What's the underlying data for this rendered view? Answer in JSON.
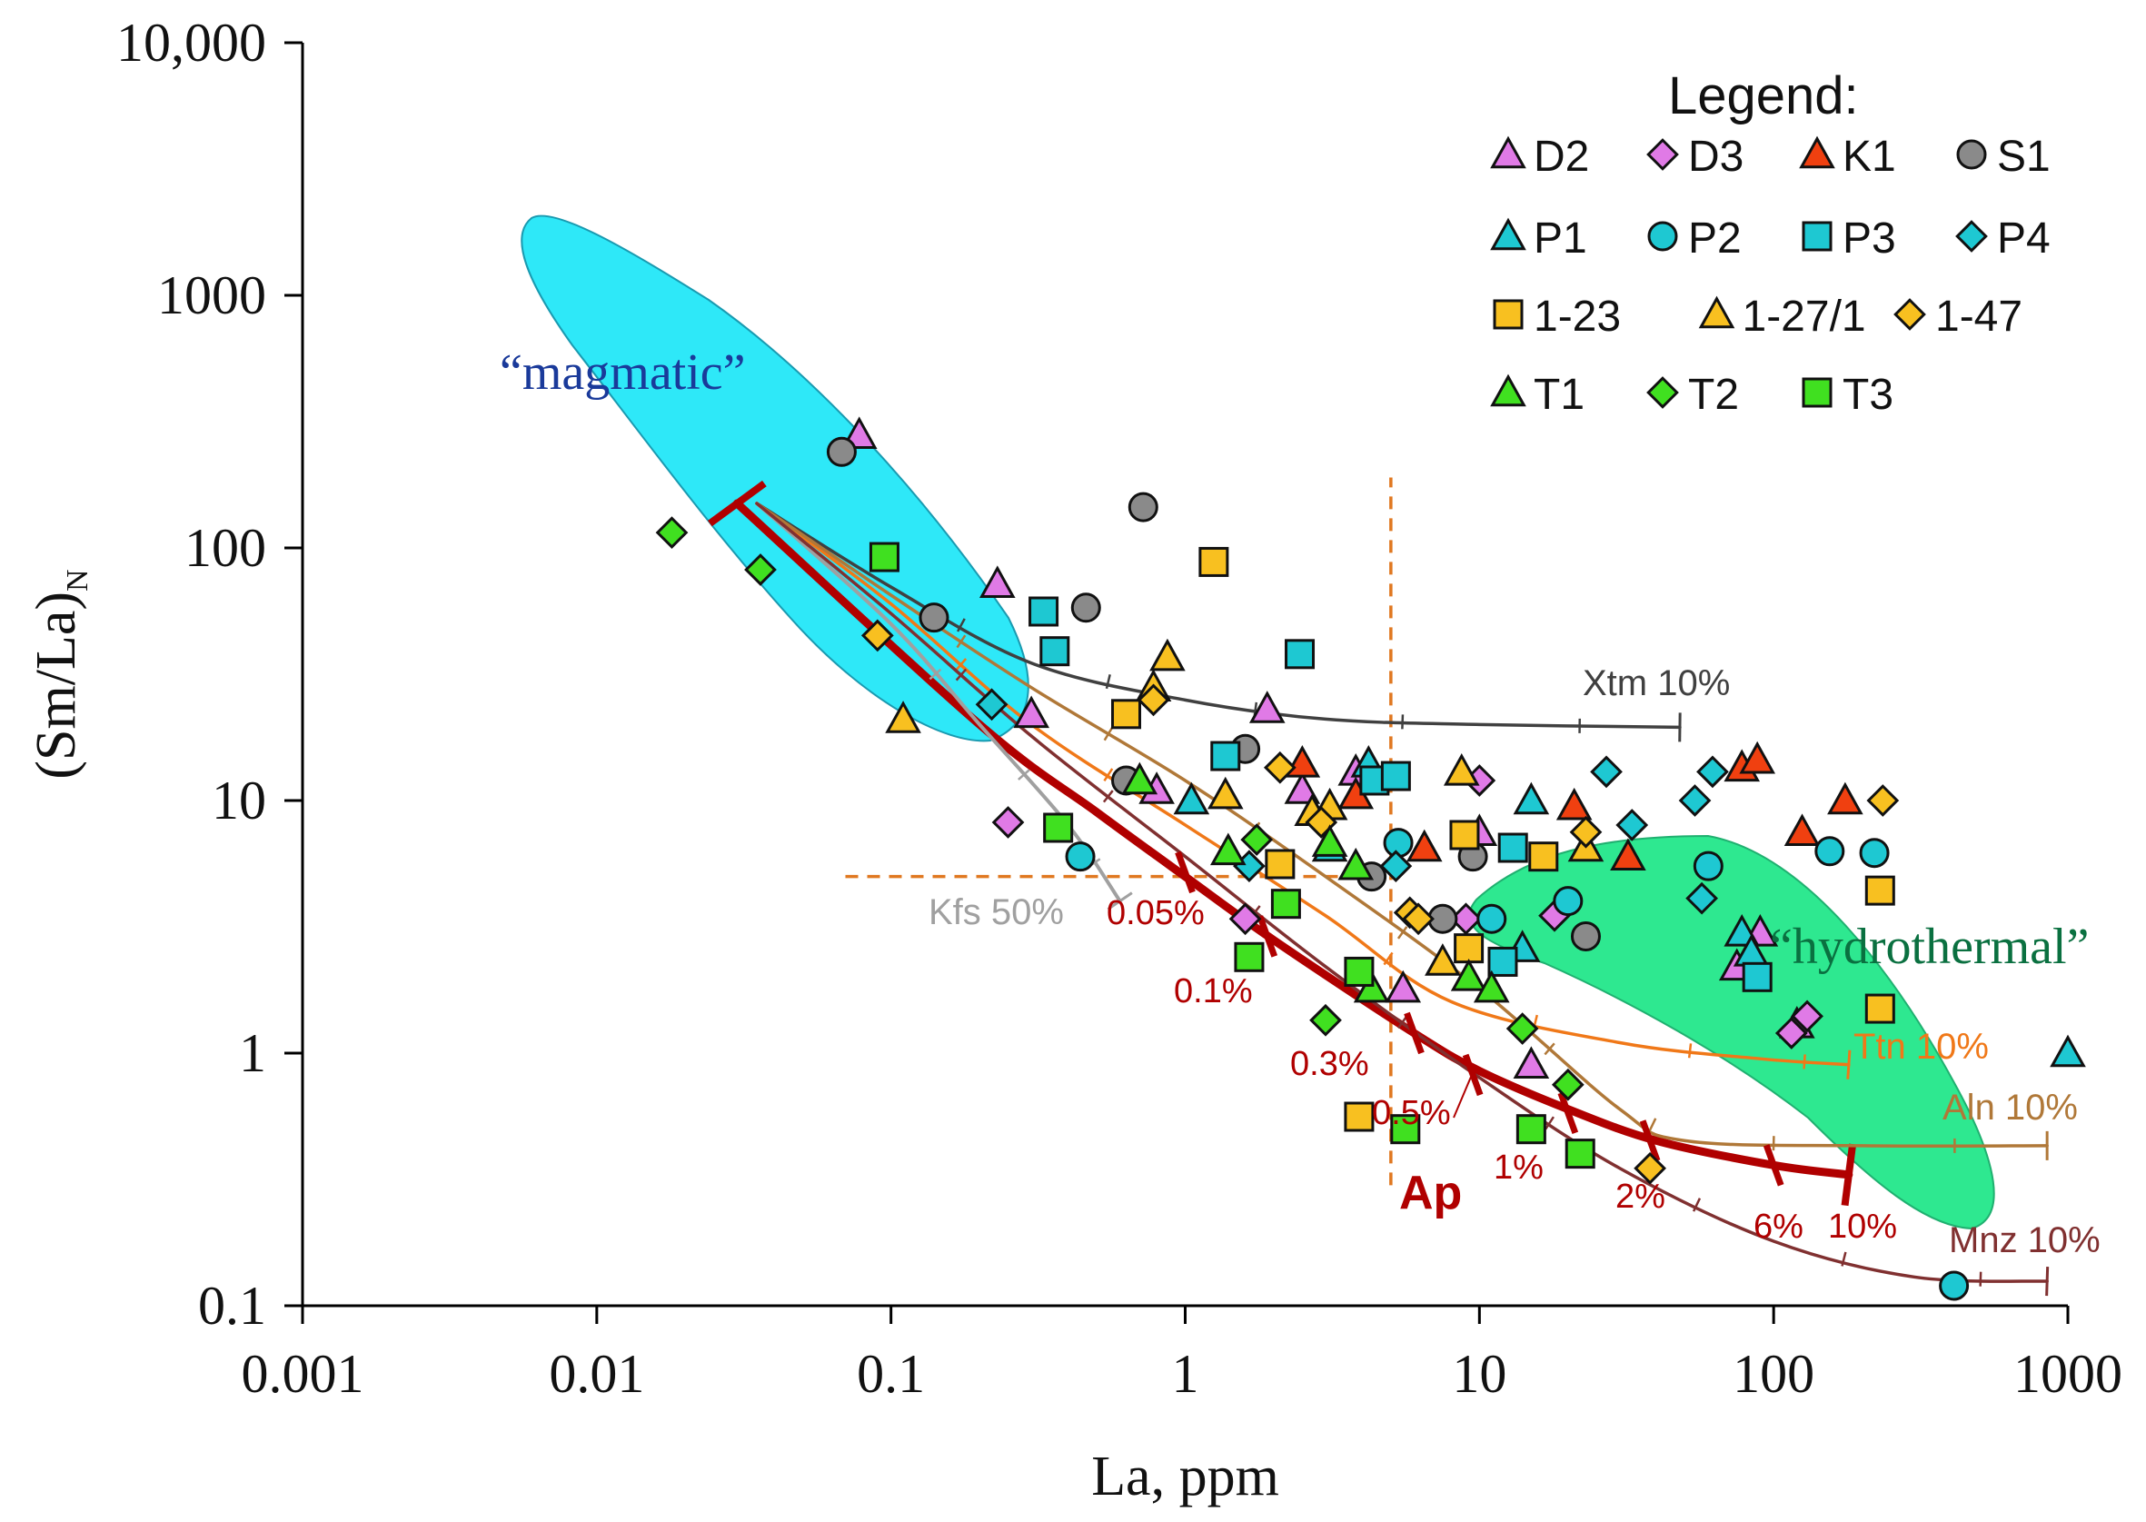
{
  "chart_data": {
    "type": "scatter",
    "title": "",
    "xlabel": "La, ppm",
    "ylabel": "(Sm/La)",
    "ylabel_sub": "N",
    "xscale": "log",
    "yscale": "log",
    "xlim": [
      0.001,
      1000
    ],
    "ylim": [
      0.1,
      10000
    ],
    "x_ticks": [
      0.001,
      0.01,
      0.1,
      1,
      10,
      100,
      1000
    ],
    "x_tick_labels": [
      "0.001",
      "0.01",
      "0.1",
      "1",
      "10",
      "100",
      "1000"
    ],
    "y_ticks": [
      0.1,
      1,
      10,
      100,
      1000,
      10000
    ],
    "y_tick_labels": [
      "0.1",
      "1",
      "10",
      "100",
      "1000",
      "10,000"
    ],
    "grid": false,
    "legend": {
      "title": "Legend:",
      "placement": "top-right",
      "entries": [
        {
          "name": "D2",
          "marker": "triangle",
          "color": "#e07ae6"
        },
        {
          "name": "D3",
          "marker": "diamond",
          "color": "#e07ae6"
        },
        {
          "name": "K1",
          "marker": "triangle",
          "color": "#f04010"
        },
        {
          "name": "S1",
          "marker": "circle",
          "color": "#8a8a8a"
        },
        {
          "name": "P1",
          "marker": "triangle",
          "color": "#1ec8d2"
        },
        {
          "name": "P2",
          "marker": "circle",
          "color": "#1ec8d2"
        },
        {
          "name": "P3",
          "marker": "square",
          "color": "#1ec8d2"
        },
        {
          "name": "P4",
          "marker": "diamond",
          "color": "#1ec8d2"
        },
        {
          "name": "1-23",
          "marker": "square",
          "color": "#f8c020"
        },
        {
          "name": "1-27/1",
          "marker": "triangle",
          "color": "#f8c020"
        },
        {
          "name": "1-47",
          "marker": "diamond",
          "color": "#f8c020"
        },
        {
          "name": "T1",
          "marker": "triangle",
          "color": "#40e020"
        },
        {
          "name": "T2",
          "marker": "diamond",
          "color": "#40e020"
        },
        {
          "name": "T3",
          "marker": "square",
          "color": "#40e020"
        }
      ]
    },
    "series": [
      {
        "name": "D2",
        "points": [
          [
            0.078,
            280
          ],
          [
            0.23,
            72
          ],
          [
            0.3,
            22
          ],
          [
            0.8,
            11
          ],
          [
            1.9,
            23
          ],
          [
            2.5,
            11
          ],
          [
            3.8,
            13
          ],
          [
            5.5,
            1.8
          ],
          [
            10,
            7.5
          ],
          [
            15,
            0.9
          ],
          [
            75,
            2.2
          ],
          [
            90,
            3
          ],
          [
            120,
            1.3
          ]
        ]
      },
      {
        "name": "D3",
        "points": [
          [
            0.25,
            8.2
          ],
          [
            1.6,
            3.4
          ],
          [
            10,
            12
          ],
          [
            9,
            3.4
          ],
          [
            18,
            3.5
          ],
          [
            130,
            1.4
          ],
          [
            115,
            1.2
          ]
        ]
      },
      {
        "name": "K1",
        "points": [
          [
            2.5,
            14
          ],
          [
            3.8,
            10.5
          ],
          [
            6.5,
            6.5
          ],
          [
            21,
            9.5
          ],
          [
            32,
            6
          ],
          [
            78,
            13.5
          ],
          [
            88,
            14.5
          ],
          [
            125,
            7.5
          ],
          [
            175,
            10
          ]
        ]
      },
      {
        "name": "S1",
        "points": [
          [
            0.068,
            240
          ],
          [
            0.14,
            53
          ],
          [
            0.46,
            58
          ],
          [
            0.72,
            145
          ],
          [
            0.63,
            12
          ],
          [
            1.6,
            16
          ],
          [
            4.3,
            5
          ],
          [
            7.5,
            3.4
          ],
          [
            9.5,
            6
          ],
          [
            23,
            2.9
          ]
        ]
      },
      {
        "name": "P1",
        "points": [
          [
            1.05,
            10
          ],
          [
            3.1,
            6.5
          ],
          [
            4.2,
            14
          ],
          [
            15,
            10
          ],
          [
            14,
            2.6
          ],
          [
            78,
            3
          ],
          [
            84,
            2.5
          ],
          [
            1000,
            1
          ]
        ]
      },
      {
        "name": "P2",
        "points": [
          [
            0.44,
            6
          ],
          [
            5.3,
            6.8
          ],
          [
            11,
            3.4
          ],
          [
            20,
            4
          ],
          [
            60,
            5.5
          ],
          [
            155,
            6.3
          ],
          [
            220,
            6.2
          ],
          [
            410,
            0.12
          ]
        ]
      },
      {
        "name": "P3",
        "points": [
          [
            0.33,
            56
          ],
          [
            0.36,
            39
          ],
          [
            1.37,
            15
          ],
          [
            2.45,
            38
          ],
          [
            4.4,
            12
          ],
          [
            5.2,
            12.5
          ],
          [
            13,
            6.5
          ],
          [
            12,
            2.3
          ],
          [
            88,
            2
          ]
        ]
      },
      {
        "name": "P4",
        "points": [
          [
            0.22,
            24
          ],
          [
            1.65,
            5.5
          ],
          [
            5.2,
            5.5
          ],
          [
            27,
            13
          ],
          [
            33,
            8
          ],
          [
            57,
            4.1
          ],
          [
            54,
            10
          ],
          [
            62,
            13
          ]
        ]
      },
      {
        "name": "1-23",
        "points": [
          [
            0.63,
            22
          ],
          [
            1.25,
            88
          ],
          [
            2.1,
            5.6
          ],
          [
            8.9,
            7.3
          ],
          [
            9.2,
            2.6
          ],
          [
            16.5,
            6
          ],
          [
            3.9,
            0.56
          ],
          [
            230,
            4.4
          ],
          [
            230,
            1.5
          ]
        ]
      },
      {
        "name": "1-27/1",
        "points": [
          [
            0.11,
            21
          ],
          [
            0.78,
            28
          ],
          [
            0.87,
            37
          ],
          [
            1.37,
            10.5
          ],
          [
            2.7,
            9
          ],
          [
            3.1,
            9.5
          ],
          [
            7.5,
            2.3
          ],
          [
            8.7,
            13
          ],
          [
            23,
            6.5
          ]
        ]
      },
      {
        "name": "1-47",
        "points": [
          [
            0.09,
            45
          ],
          [
            0.78,
            25
          ],
          [
            2.1,
            13.5
          ],
          [
            2.9,
            8.2
          ],
          [
            5.8,
            3.6
          ],
          [
            6.2,
            3.4
          ],
          [
            23,
            7.5
          ],
          [
            38,
            0.35
          ],
          [
            235,
            10
          ]
        ]
      },
      {
        "name": "T1",
        "points": [
          [
            0.7,
            12
          ],
          [
            1.4,
            6.3
          ],
          [
            3.1,
            6.8
          ],
          [
            3.8,
            5.5
          ],
          [
            4.3,
            1.8
          ],
          [
            9.2,
            2
          ],
          [
            11,
            1.8
          ]
        ]
      },
      {
        "name": "T2",
        "points": [
          [
            0.018,
            115
          ],
          [
            0.036,
            82
          ],
          [
            1.75,
            7
          ],
          [
            3,
            1.35
          ],
          [
            14,
            1.25
          ],
          [
            20,
            0.75
          ]
        ]
      },
      {
        "name": "T3",
        "points": [
          [
            0.095,
            92
          ],
          [
            0.37,
            7.8
          ],
          [
            1.65,
            2.4
          ],
          [
            2.2,
            3.9
          ],
          [
            3.9,
            2.1
          ],
          [
            5.6,
            0.5
          ],
          [
            15,
            0.5
          ],
          [
            22,
            0.4
          ]
        ]
      }
    ],
    "regions": [
      {
        "label": "“magmatic”",
        "color": "#2ee8f8",
        "label_color": "#1a3a9a"
      },
      {
        "label": "“hydrothermal”",
        "color": "#2ee890",
        "label_color": "#0a7040"
      }
    ],
    "model_curves": [
      {
        "name": "Ap",
        "color": "#b00000",
        "points": [
          [
            0.03,
            150
          ],
          [
            0.2,
            20
          ],
          [
            0.5,
            9
          ],
          [
            1,
            5
          ],
          [
            2,
            2.8
          ],
          [
            6,
            1.2
          ],
          [
            10,
            0.85
          ],
          [
            20,
            0.6
          ],
          [
            40,
            0.45
          ],
          [
            100,
            0.36
          ],
          [
            180,
            0.33
          ]
        ],
        "tick_labels": [
          "0.05%",
          "0.1%",
          "0.3%",
          "0.5%",
          "1%",
          "2%",
          "6%",
          "10%"
        ]
      },
      {
        "name": "Xtm",
        "label": "Xtm 10%",
        "color": "#404040",
        "points": [
          [
            0.035,
            150
          ],
          [
            0.1,
            70
          ],
          [
            0.3,
            35
          ],
          [
            1,
            25
          ],
          [
            3,
            21
          ],
          [
            10,
            20
          ],
          [
            48,
            19.5
          ]
        ]
      },
      {
        "name": "Kfs",
        "label": "Kfs 50%",
        "color": "#a0a0a0",
        "points": [
          [
            0.035,
            150
          ],
          [
            0.1,
            50
          ],
          [
            0.2,
            20
          ],
          [
            0.4,
            8
          ],
          [
            0.6,
            4
          ]
        ]
      },
      {
        "name": "Ttn",
        "label": "Ttn 10%",
        "color": "#f07818",
        "points": [
          [
            0.035,
            150
          ],
          [
            0.1,
            60
          ],
          [
            0.3,
            20
          ],
          [
            1,
            8
          ],
          [
            3,
            3.5
          ],
          [
            8,
            1.6
          ],
          [
            30,
            1.1
          ],
          [
            90,
            0.95
          ],
          [
            180,
            0.9
          ]
        ]
      },
      {
        "name": "Aln",
        "label": "Aln 10%",
        "color": "#b07838",
        "points": [
          [
            0.035,
            150
          ],
          [
            0.1,
            65
          ],
          [
            0.3,
            28
          ],
          [
            1,
            12
          ],
          [
            3,
            5
          ],
          [
            10,
            1.8
          ],
          [
            30,
            0.6
          ],
          [
            50,
            0.45
          ],
          [
            200,
            0.43
          ],
          [
            850,
            0.43
          ]
        ]
      },
      {
        "name": "Mnz",
        "label": "Mnz 10%",
        "color": "#803030",
        "points": [
          [
            0.035,
            150
          ],
          [
            0.1,
            55
          ],
          [
            0.3,
            18
          ],
          [
            1,
            6
          ],
          [
            3,
            2.2
          ],
          [
            10,
            0.8
          ],
          [
            30,
            0.35
          ],
          [
            100,
            0.18
          ],
          [
            300,
            0.13
          ],
          [
            850,
            0.125
          ]
        ]
      }
    ],
    "reference_lines": [
      {
        "name": "vertical-dashed",
        "color": "#e07820",
        "x": [
          5,
          5
        ],
        "y": [
          0.3,
          190
        ]
      },
      {
        "name": "horizontal-dashed",
        "color": "#e07820",
        "x": [
          0.07,
          5
        ],
        "y": [
          5,
          5
        ]
      }
    ],
    "annotations": {
      "ap_label": "Ap"
    }
  }
}
